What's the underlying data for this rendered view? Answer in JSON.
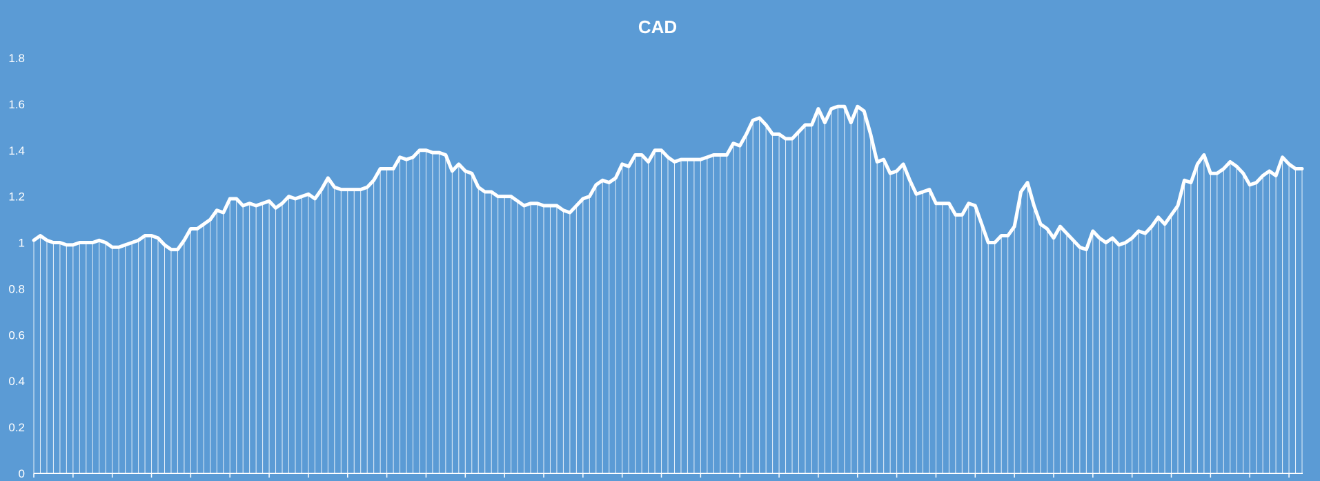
{
  "chart_data": {
    "type": "line",
    "title": "CAD",
    "xlabel": "",
    "ylabel": "",
    "ylim": [
      0,
      1.8
    ],
    "yticks": [
      "0",
      "0.2",
      "0.4",
      "0.6",
      "0.8",
      "1",
      "1.2",
      "1.4",
      "1.6",
      "1.8"
    ],
    "grid": false,
    "legend": "none",
    "drop_lines": true,
    "colors": {
      "background": "#5b9bd5",
      "line": "#ffffff",
      "drop_lines": "#ffffff",
      "text": "#ffffff"
    },
    "series": [
      {
        "values": [
          1.01,
          1.03,
          1.01,
          1.0,
          1.0,
          0.99,
          0.99,
          1.0,
          1.0,
          1.0,
          1.01,
          1.0,
          0.98,
          0.98,
          0.99,
          1.0,
          1.01,
          1.03,
          1.03,
          1.02,
          0.99,
          0.97,
          0.97,
          1.01,
          1.06,
          1.06,
          1.08,
          1.1,
          1.14,
          1.13,
          1.19,
          1.19,
          1.16,
          1.17,
          1.16,
          1.17,
          1.18,
          1.15,
          1.17,
          1.2,
          1.19,
          1.2,
          1.21,
          1.19,
          1.23,
          1.28,
          1.24,
          1.23,
          1.23,
          1.23,
          1.23,
          1.24,
          1.27,
          1.32,
          1.32,
          1.32,
          1.37,
          1.36,
          1.37,
          1.4,
          1.4,
          1.39,
          1.39,
          1.38,
          1.31,
          1.34,
          1.31,
          1.3,
          1.24,
          1.22,
          1.22,
          1.2,
          1.2,
          1.2,
          1.18,
          1.16,
          1.17,
          1.17,
          1.16,
          1.16,
          1.16,
          1.14,
          1.13,
          1.16,
          1.19,
          1.2,
          1.25,
          1.27,
          1.26,
          1.28,
          1.34,
          1.33,
          1.38,
          1.38,
          1.35,
          1.4,
          1.4,
          1.37,
          1.35,
          1.36,
          1.36,
          1.36,
          1.36,
          1.37,
          1.38,
          1.38,
          1.38,
          1.43,
          1.42,
          1.47,
          1.53,
          1.54,
          1.51,
          1.47,
          1.47,
          1.45,
          1.45,
          1.48,
          1.51,
          1.51,
          1.58,
          1.52,
          1.58,
          1.59,
          1.59,
          1.52,
          1.59,
          1.57,
          1.47,
          1.35,
          1.36,
          1.3,
          1.31,
          1.34,
          1.27,
          1.21,
          1.22,
          1.23,
          1.17,
          1.17,
          1.17,
          1.12,
          1.12,
          1.17,
          1.16,
          1.08,
          1.0,
          1.0,
          1.03,
          1.03,
          1.07,
          1.22,
          1.26,
          1.16,
          1.08,
          1.06,
          1.02,
          1.07,
          1.04,
          1.01,
          0.98,
          0.97,
          1.05,
          1.02,
          1.0,
          1.02,
          0.99,
          1.0,
          1.02,
          1.05,
          1.04,
          1.07,
          1.11,
          1.08,
          1.12,
          1.16,
          1.27,
          1.26,
          1.34,
          1.38,
          1.3,
          1.3,
          1.32,
          1.35,
          1.33,
          1.3,
          1.25,
          1.26,
          1.29,
          1.31,
          1.29,
          1.37,
          1.34,
          1.32,
          1.32
        ]
      }
    ]
  }
}
